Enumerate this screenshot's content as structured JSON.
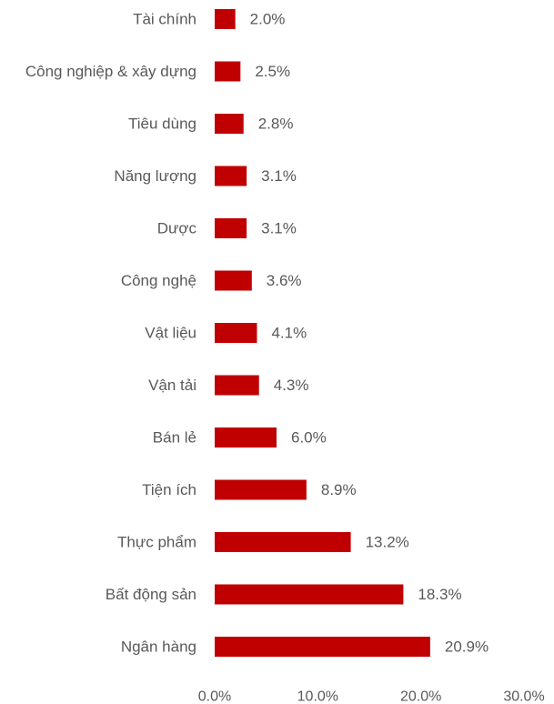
{
  "chart_data": {
    "type": "bar",
    "orientation": "horizontal",
    "categories": [
      "Tài chính",
      "Công nghiệp & xây dựng",
      "Tiêu dùng",
      "Năng lượng",
      "Dược",
      "Công nghệ",
      "Vật liệu",
      "Vận tải",
      "Bán lẻ",
      "Tiện ích",
      "Thực phẩm",
      "Bất động sản",
      "Ngân hàng"
    ],
    "values": [
      2.0,
      2.5,
      2.8,
      3.1,
      3.1,
      3.6,
      4.1,
      4.3,
      6.0,
      8.9,
      13.2,
      18.3,
      20.9
    ],
    "value_labels": [
      "2.0%",
      "2.5%",
      "2.8%",
      "3.1%",
      "3.1%",
      "3.6%",
      "4.1%",
      "4.3%",
      "6.0%",
      "8.9%",
      "13.2%",
      "18.3%",
      "20.9%"
    ],
    "x_ticks": [
      0,
      10,
      20,
      30
    ],
    "x_tick_labels": [
      "0.0%",
      "10.0%",
      "20.0%",
      "30.0%"
    ],
    "xlim": [
      0,
      30
    ],
    "bar_color": "#c00000",
    "grid": false,
    "legend": "none"
  }
}
